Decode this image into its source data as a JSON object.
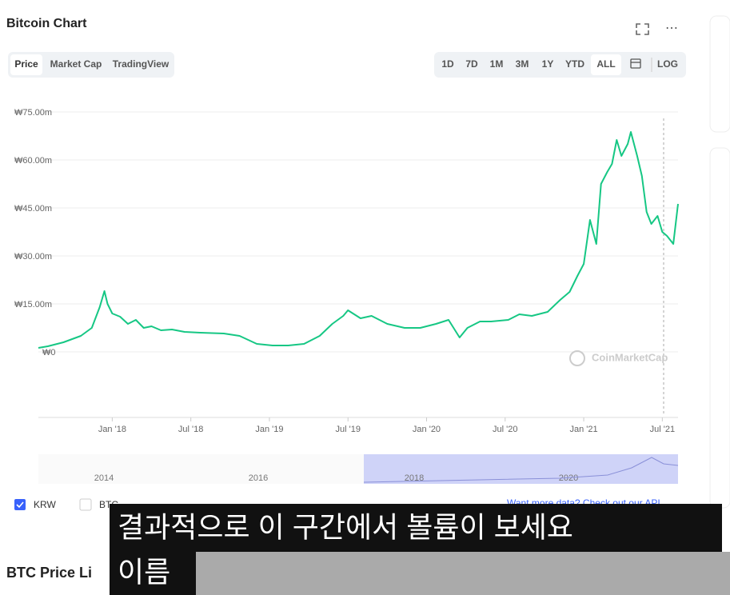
{
  "header": {
    "title": "Bitcoin Chart",
    "tabs": [
      "Price",
      "Market Cap",
      "TradingView"
    ],
    "ranges": [
      "1D",
      "7D",
      "1M",
      "3M",
      "1Y",
      "YTD",
      "ALL",
      "LOG"
    ]
  },
  "chart_data": {
    "type": "line",
    "x": [
      2017.53,
      2017.59,
      2017.69,
      2017.8,
      2017.87,
      2017.92,
      2017.95,
      2017.97,
      2018.0,
      2018.05,
      2018.1,
      2018.15,
      2018.2,
      2018.25,
      2018.31,
      2018.38,
      2018.46,
      2018.56,
      2018.71,
      2018.81,
      2018.92,
      2019.02,
      2019.12,
      2019.22,
      2019.32,
      2019.4,
      2019.47,
      2019.5,
      2019.58,
      2019.65,
      2019.75,
      2019.86,
      2019.96,
      2020.06,
      2020.14,
      2020.21,
      2020.26,
      2020.34,
      2020.41,
      2020.52,
      2020.59,
      2020.67,
      2020.77,
      2020.85,
      2020.91,
      2020.96,
      2021.0,
      2021.04,
      2021.08,
      2021.11,
      2021.15,
      2021.18,
      2021.21,
      2021.24,
      2021.28,
      2021.3,
      2021.34,
      2021.37,
      2021.4,
      2021.43,
      2021.47,
      2021.5,
      2021.53,
      2021.57,
      2021.6
    ],
    "series": [
      {
        "name": "KRW",
        "color": "#16c784",
        "values": [
          1.25,
          1.75,
          3,
          5,
          7.5,
          14,
          19,
          15,
          12,
          11,
          8.75,
          10,
          7.5,
          8,
          6.75,
          7,
          6.25,
          6,
          5.75,
          5,
          2.5,
          2,
          2,
          2.5,
          5,
          8.75,
          11.25,
          13,
          10.5,
          11.25,
          8.75,
          7.5,
          7.5,
          8.75,
          10,
          4.5,
          7.5,
          9.5,
          9.5,
          10,
          11.75,
          11.25,
          12.5,
          16.25,
          18.75,
          23.75,
          27.5,
          41.25,
          33.75,
          52.5,
          56.25,
          58.75,
          66.25,
          61.25,
          65,
          68.75,
          61.25,
          55,
          43.75,
          40,
          42.5,
          37.5,
          36.25,
          33.75,
          46.25
        ]
      }
    ],
    "xlim": [
      2017.53,
      2021.6
    ],
    "xticks": [
      {
        "value": 2018,
        "label": "Jan '18"
      },
      {
        "value": 2018.5,
        "label": "Jul '18"
      },
      {
        "value": 2019,
        "label": "Jan '19"
      },
      {
        "value": 2019.5,
        "label": "Jul '19"
      },
      {
        "value": 2020,
        "label": "Jan '20"
      },
      {
        "value": 2020.5,
        "label": "Jul '20"
      },
      {
        "value": 2021,
        "label": "Jan '21"
      },
      {
        "value": 2021.5,
        "label": "Jul '21"
      }
    ],
    "ylim": [
      0,
      75
    ],
    "yticks": [
      {
        "value": 0,
        "label": "₩0"
      },
      {
        "value": 15,
        "label": "₩15.00m"
      },
      {
        "value": 30,
        "label": "₩30.00m"
      },
      {
        "value": 45,
        "label": "₩45.00m"
      },
      {
        "value": 60,
        "label": "₩60.00m"
      },
      {
        "value": 75,
        "label": "₩75.00m"
      }
    ],
    "grid": true,
    "watermark": "CoinMarketCap"
  },
  "navigator": {
    "labels": [
      "2014",
      "2016",
      "2018",
      "2020"
    ]
  },
  "footer": {
    "other_currency": "BTC",
    "api_note": "Want more data? Check out our API"
  },
  "caption": {
    "lines": [
      "결과적으로 이 구간에서 볼륨이 보세요",
      "이름"
    ]
  },
  "section_heading": "BTC Price Li"
}
